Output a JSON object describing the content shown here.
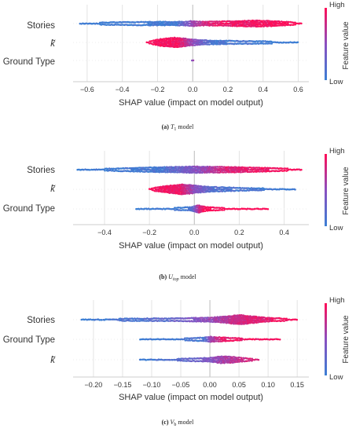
{
  "colorbar": {
    "high": "High",
    "low": "Low",
    "title": "Feature value",
    "color_low": "#3b7fd4",
    "color_high": "#ff0d57"
  },
  "chart_data": [
    {
      "type": "scatter",
      "subtype": "shap-beeswarm",
      "caption": {
        "letter": "(a)",
        "model": "T",
        "sub": "1",
        "suffix": " model"
      },
      "xlabel": "SHAP value (impact on model output)",
      "xlim": [
        -0.68,
        0.66
      ],
      "xticks": [
        -0.6,
        -0.4,
        -0.2,
        0.0,
        0.2,
        0.4,
        0.6
      ],
      "tick_labels": [
        "−0.6",
        "−0.4",
        "−0.2",
        "0.0",
        "0.2",
        "0.4",
        "0.6"
      ],
      "features": [
        {
          "name": "Stories",
          "tilde": false,
          "min": -0.64,
          "max": 0.62,
          "density": [
            [
              -0.64,
              0.6
            ],
            [
              -0.5,
              1.3
            ],
            [
              -0.35,
              1.8
            ],
            [
              -0.2,
              2.0
            ],
            [
              -0.05,
              2.1
            ],
            [
              0.0,
              3.0
            ],
            [
              0.05,
              2.1
            ],
            [
              0.2,
              2.6
            ],
            [
              0.35,
              3.6
            ],
            [
              0.45,
              3.0
            ],
            [
              0.55,
              1.8
            ],
            [
              0.62,
              0.6
            ]
          ],
          "color": [
            [
              -0.64,
              0.0
            ],
            [
              -0.1,
              0.05
            ],
            [
              0.0,
              0.55
            ],
            [
              0.1,
              0.9
            ],
            [
              0.62,
              1.0
            ]
          ]
        },
        {
          "name": "k",
          "tilde": true,
          "min": -0.26,
          "max": 0.6,
          "density": [
            [
              -0.26,
              0.6
            ],
            [
              -0.18,
              4.2
            ],
            [
              -0.1,
              5.8
            ],
            [
              -0.04,
              4.5
            ],
            [
              0.0,
              3.4
            ],
            [
              0.1,
              2.2
            ],
            [
              0.3,
              1.6
            ],
            [
              0.5,
              1.0
            ],
            [
              0.6,
              0.5
            ]
          ],
          "color": [
            [
              -0.26,
              1.0
            ],
            [
              -0.08,
              0.95
            ],
            [
              0.0,
              0.55
            ],
            [
              0.1,
              0.1
            ],
            [
              0.6,
              0.0
            ]
          ]
        },
        {
          "name": "Ground Type",
          "tilde": false,
          "min": -0.005,
          "max": 0.005,
          "density": [
            [
              -0.005,
              0.6
            ],
            [
              0.0,
              1.0
            ],
            [
              0.005,
              0.6
            ]
          ],
          "color": [
            [
              -0.005,
              0.5
            ],
            [
              0.005,
              0.5
            ]
          ]
        }
      ]
    },
    {
      "type": "scatter",
      "subtype": "shap-beeswarm",
      "caption": {
        "letter": "(b)",
        "model": "U",
        "sub": "top",
        "suffix": " model"
      },
      "xlabel": "SHAP value (impact on model output)",
      "xlim": [
        -0.54,
        0.51
      ],
      "xticks": [
        -0.4,
        -0.2,
        0.0,
        0.2,
        0.4
      ],
      "tick_labels": [
        "−0.4",
        "−0.2",
        "0.0",
        "0.2",
        "0.4"
      ],
      "features": [
        {
          "name": "Stories",
          "tilde": false,
          "min": -0.52,
          "max": 0.48,
          "density": [
            [
              -0.52,
              0.6
            ],
            [
              -0.35,
              1.4
            ],
            [
              -0.2,
              2.6
            ],
            [
              -0.1,
              3.2
            ],
            [
              0.0,
              3.8
            ],
            [
              0.1,
              3.4
            ],
            [
              0.2,
              3.0
            ],
            [
              0.35,
              1.8
            ],
            [
              0.48,
              0.6
            ]
          ],
          "color": [
            [
              -0.52,
              0.0
            ],
            [
              -0.15,
              0.08
            ],
            [
              0.0,
              0.45
            ],
            [
              0.15,
              0.85
            ],
            [
              0.48,
              1.0
            ]
          ]
        },
        {
          "name": "k",
          "tilde": true,
          "min": -0.2,
          "max": 0.45,
          "density": [
            [
              -0.2,
              0.8
            ],
            [
              -0.12,
              4.2
            ],
            [
              -0.05,
              6.0
            ],
            [
              0.0,
              4.6
            ],
            [
              0.06,
              3.0
            ],
            [
              0.2,
              1.6
            ],
            [
              0.35,
              1.0
            ],
            [
              0.45,
              0.5
            ]
          ],
          "color": [
            [
              -0.2,
              1.0
            ],
            [
              -0.06,
              0.9
            ],
            [
              0.0,
              0.5
            ],
            [
              0.08,
              0.15
            ],
            [
              0.45,
              0.0
            ]
          ]
        },
        {
          "name": "Ground Type",
          "tilde": false,
          "min": -0.26,
          "max": 0.33,
          "density": [
            [
              -0.26,
              0.6
            ],
            [
              -0.1,
              1.0
            ],
            [
              -0.02,
              2.0
            ],
            [
              0.0,
              3.2
            ],
            [
              0.02,
              4.6
            ],
            [
              0.05,
              2.2
            ],
            [
              0.15,
              1.0
            ],
            [
              0.33,
              0.6
            ]
          ],
          "color": [
            [
              -0.26,
              0.0
            ],
            [
              -0.03,
              0.05
            ],
            [
              0.0,
              0.35
            ],
            [
              0.02,
              0.75
            ],
            [
              0.05,
              1.0
            ],
            [
              0.33,
              1.0
            ]
          ]
        }
      ]
    },
    {
      "type": "scatter",
      "subtype": "shap-beeswarm",
      "caption": {
        "letter": "(c)",
        "model": "V",
        "sub": "b",
        "suffix": " model"
      },
      "xlabel": "SHAP value (impact on model output)",
      "xlim": [
        -0.235,
        0.17
      ],
      "xticks": [
        -0.2,
        -0.15,
        -0.1,
        -0.05,
        0.0,
        0.05,
        0.1,
        0.15
      ],
      "tick_labels": [
        "−0.20",
        "−0.15",
        "−0.10",
        "−0.05",
        "0.00",
        "0.05",
        "0.10",
        "0.15"
      ],
      "features": [
        {
          "name": "Stories",
          "tilde": false,
          "min": -0.22,
          "max": 0.15,
          "density": [
            [
              -0.22,
              0.6
            ],
            [
              -0.15,
              1.2
            ],
            [
              -0.05,
              1.6
            ],
            [
              0.0,
              2.4
            ],
            [
              0.03,
              4.0
            ],
            [
              0.05,
              5.8
            ],
            [
              0.07,
              4.2
            ],
            [
              0.1,
              2.2
            ],
            [
              0.15,
              0.6
            ]
          ],
          "color": [
            [
              -0.22,
              0.0
            ],
            [
              -0.08,
              0.2
            ],
            [
              0.0,
              0.55
            ],
            [
              0.05,
              0.8
            ],
            [
              0.15,
              1.0
            ]
          ]
        },
        {
          "name": "Ground Type",
          "tilde": false,
          "min": -0.12,
          "max": 0.12,
          "density": [
            [
              -0.12,
              0.6
            ],
            [
              -0.05,
              1.0
            ],
            [
              -0.01,
              2.0
            ],
            [
              0.0,
              3.0
            ],
            [
              0.02,
              2.2
            ],
            [
              0.05,
              1.2
            ],
            [
              0.12,
              0.6
            ]
          ],
          "color": [
            [
              -0.12,
              0.0
            ],
            [
              -0.01,
              0.1
            ],
            [
              0.0,
              0.5
            ],
            [
              0.02,
              0.9
            ],
            [
              0.12,
              1.0
            ]
          ]
        },
        {
          "name": "k",
          "tilde": true,
          "min": -0.12,
          "max": 0.085,
          "density": [
            [
              -0.12,
              0.6
            ],
            [
              -0.05,
              1.2
            ],
            [
              0.0,
              2.2
            ],
            [
              0.02,
              4.2
            ],
            [
              0.04,
              3.4
            ],
            [
              0.06,
              1.8
            ],
            [
              0.085,
              0.5
            ]
          ],
          "color": [
            [
              -0.12,
              0.0
            ],
            [
              -0.02,
              0.3
            ],
            [
              0.02,
              0.6
            ],
            [
              0.085,
              0.9
            ]
          ]
        }
      ]
    }
  ]
}
